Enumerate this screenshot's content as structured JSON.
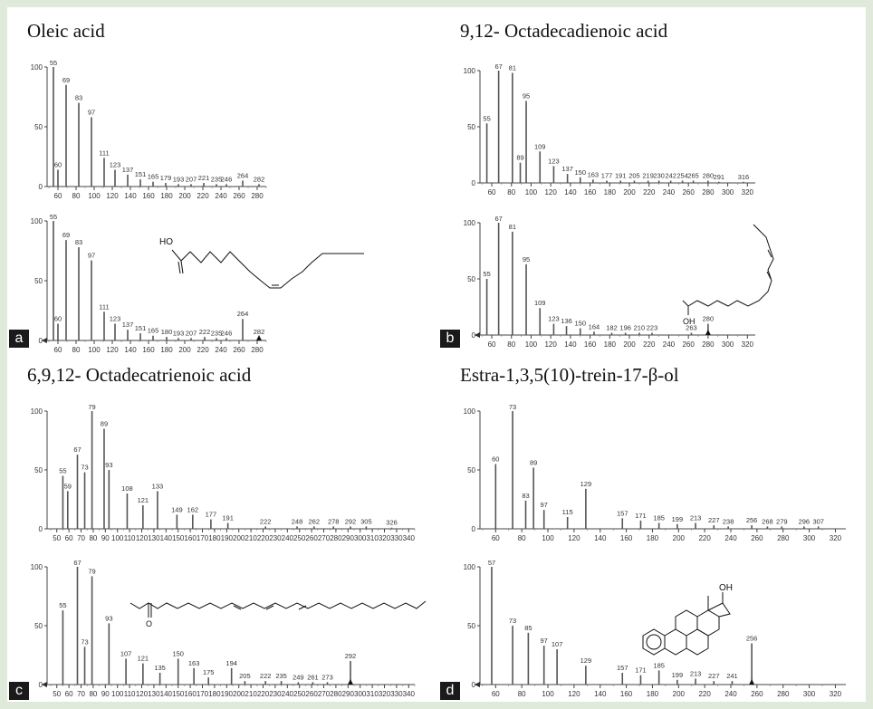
{
  "figure": {
    "panels": [
      {
        "title": "Oleic acid",
        "letter": "a"
      },
      {
        "title": "9,12- Octadecadienoic acid",
        "letter": "b"
      },
      {
        "title": "6,9,12- Octadecatrienoic acid",
        "letter": "c"
      },
      {
        "title": "Estra-1,3,5(10)-trein-17-β-ol",
        "letter": "d"
      }
    ],
    "structures": {
      "oleic_label": "HO",
      "linoleic_label": "OH",
      "gla_label": "O",
      "estradiol_label": "OH"
    }
  },
  "chart_data": [
    {
      "type": "bar",
      "panel": "a",
      "role": "sample",
      "xlim": [
        48,
        290
      ],
      "ylim": [
        0,
        100
      ],
      "yticks": [
        0,
        50,
        100
      ],
      "xticks": [
        60,
        80,
        100,
        120,
        140,
        160,
        180,
        200,
        220,
        240,
        260,
        280
      ],
      "peaks": [
        [
          55,
          100
        ],
        [
          60,
          14
        ],
        [
          69,
          85
        ],
        [
          83,
          70
        ],
        [
          97,
          58
        ],
        [
          111,
          24
        ],
        [
          123,
          14
        ],
        [
          137,
          10
        ],
        [
          151,
          6
        ],
        [
          165,
          4
        ],
        [
          179,
          3
        ],
        [
          193,
          2
        ],
        [
          207,
          2
        ],
        [
          221,
          3
        ],
        [
          235,
          2
        ],
        [
          246,
          2
        ],
        [
          264,
          5
        ],
        [
          282,
          2
        ]
      ],
      "labels": [
        55,
        60,
        69,
        83,
        97,
        111,
        123,
        137,
        151,
        165,
        179,
        193,
        207,
        221,
        235,
        246,
        264,
        282
      ]
    },
    {
      "type": "bar",
      "panel": "a",
      "role": "library",
      "xlim": [
        48,
        290
      ],
      "ylim": [
        0,
        100
      ],
      "yticks": [
        0,
        50,
        100
      ],
      "xticks": [
        60,
        80,
        100,
        120,
        140,
        160,
        180,
        200,
        220,
        240,
        260,
        280
      ],
      "peaks": [
        [
          55,
          100
        ],
        [
          60,
          14
        ],
        [
          69,
          84
        ],
        [
          83,
          78
        ],
        [
          97,
          67
        ],
        [
          111,
          24
        ],
        [
          123,
          14
        ],
        [
          137,
          9
        ],
        [
          151,
          6
        ],
        [
          165,
          4
        ],
        [
          180,
          3
        ],
        [
          193,
          2
        ],
        [
          207,
          2
        ],
        [
          222,
          3
        ],
        [
          235,
          2
        ],
        [
          246,
          2
        ],
        [
          264,
          18
        ],
        [
          282,
          3
        ]
      ],
      "labels": [
        55,
        60,
        69,
        83,
        97,
        111,
        123,
        137,
        151,
        165,
        180,
        193,
        207,
        222,
        235,
        246,
        264,
        282
      ]
    },
    {
      "type": "bar",
      "panel": "b",
      "role": "sample",
      "xlim": [
        48,
        328
      ],
      "ylim": [
        0,
        100
      ],
      "yticks": [
        0,
        50,
        100
      ],
      "xticks": [
        60,
        80,
        100,
        120,
        140,
        160,
        180,
        200,
        220,
        240,
        260,
        280,
        300,
        320
      ],
      "peaks": [
        [
          55,
          53
        ],
        [
          67,
          100
        ],
        [
          81,
          98
        ],
        [
          89,
          18
        ],
        [
          95,
          73
        ],
        [
          109,
          28
        ],
        [
          123,
          15
        ],
        [
          137,
          8
        ],
        [
          150,
          5
        ],
        [
          163,
          3
        ],
        [
          177,
          2
        ],
        [
          191,
          2
        ],
        [
          205,
          2
        ],
        [
          219,
          2
        ],
        [
          230,
          2
        ],
        [
          242,
          2
        ],
        [
          254,
          2
        ],
        [
          265,
          2
        ],
        [
          280,
          2
        ],
        [
          291,
          1
        ],
        [
          316,
          1
        ]
      ],
      "labels": [
        55,
        67,
        81,
        89,
        95,
        109,
        123,
        137,
        150,
        163,
        177,
        191,
        205,
        219,
        230,
        242,
        254,
        265,
        280,
        291,
        316
      ]
    },
    {
      "type": "bar",
      "panel": "b",
      "role": "library",
      "xlim": [
        48,
        328
      ],
      "ylim": [
        0,
        100
      ],
      "yticks": [
        0,
        50,
        100
      ],
      "xticks": [
        60,
        80,
        100,
        120,
        140,
        160,
        180,
        200,
        220,
        240,
        260,
        280,
        300,
        320
      ],
      "peaks": [
        [
          55,
          50
        ],
        [
          67,
          100
        ],
        [
          81,
          92
        ],
        [
          95,
          63
        ],
        [
          109,
          24
        ],
        [
          123,
          10
        ],
        [
          136,
          8
        ],
        [
          150,
          6
        ],
        [
          164,
          3
        ],
        [
          182,
          2
        ],
        [
          196,
          2
        ],
        [
          210,
          2
        ],
        [
          223,
          2
        ],
        [
          263,
          2
        ],
        [
          280,
          10
        ]
      ],
      "labels": [
        55,
        67,
        81,
        95,
        109,
        123,
        136,
        150,
        164,
        182,
        196,
        210,
        223,
        263,
        280
      ]
    },
    {
      "type": "bar",
      "panel": "c",
      "role": "sample",
      "xlim": [
        42,
        345
      ],
      "ylim": [
        0,
        100
      ],
      "yticks": [
        0,
        50,
        100
      ],
      "xticks": [
        50,
        60,
        70,
        80,
        90,
        100,
        110,
        120,
        130,
        140,
        150,
        160,
        170,
        180,
        190,
        200,
        210,
        220,
        230,
        240,
        250,
        260,
        270,
        280,
        290,
        300,
        310,
        320,
        330,
        340
      ],
      "peaks": [
        [
          55,
          45
        ],
        [
          59,
          32
        ],
        [
          67,
          63
        ],
        [
          73,
          48
        ],
        [
          79,
          100
        ],
        [
          89,
          85
        ],
        [
          93,
          50
        ],
        [
          108,
          30
        ],
        [
          121,
          20
        ],
        [
          133,
          32
        ],
        [
          149,
          12
        ],
        [
          162,
          12
        ],
        [
          177,
          8
        ],
        [
          191,
          5
        ],
        [
          222,
          2
        ],
        [
          248,
          2
        ],
        [
          262,
          2
        ],
        [
          278,
          2
        ],
        [
          292,
          2
        ],
        [
          305,
          2
        ],
        [
          326,
          1
        ]
      ],
      "labels": [
        55,
        59,
        67,
        73,
        79,
        89,
        93,
        108,
        121,
        133,
        149,
        162,
        177,
        191,
        222,
        248,
        262,
        278,
        292,
        305,
        326
      ]
    },
    {
      "type": "bar",
      "panel": "c",
      "role": "library",
      "xlim": [
        42,
        345
      ],
      "ylim": [
        0,
        100
      ],
      "yticks": [
        0,
        50,
        100
      ],
      "xticks": [
        50,
        60,
        70,
        80,
        90,
        100,
        110,
        120,
        130,
        140,
        150,
        160,
        170,
        180,
        190,
        200,
        210,
        220,
        230,
        240,
        250,
        260,
        270,
        280,
        290,
        300,
        310,
        320,
        330,
        340
      ],
      "peaks": [
        [
          55,
          63
        ],
        [
          67,
          100
        ],
        [
          73,
          32
        ],
        [
          79,
          92
        ],
        [
          93,
          52
        ],
        [
          107,
          22
        ],
        [
          121,
          18
        ],
        [
          135,
          10
        ],
        [
          150,
          22
        ],
        [
          163,
          14
        ],
        [
          175,
          6
        ],
        [
          194,
          14
        ],
        [
          205,
          3
        ],
        [
          222,
          3
        ],
        [
          235,
          3
        ],
        [
          249,
          2
        ],
        [
          261,
          2
        ],
        [
          273,
          2
        ],
        [
          292,
          20
        ]
      ],
      "labels": [
        55,
        67,
        73,
        79,
        93,
        107,
        121,
        135,
        150,
        163,
        175,
        194,
        205,
        222,
        235,
        249,
        261,
        273,
        292
      ]
    },
    {
      "type": "bar",
      "panel": "d",
      "role": "sample",
      "xlim": [
        48,
        328
      ],
      "ylim": [
        0,
        100
      ],
      "yticks": [
        0,
        50,
        100
      ],
      "xticks": [
        60,
        80,
        100,
        120,
        140,
        160,
        180,
        200,
        220,
        240,
        260,
        280,
        300,
        320
      ],
      "peaks": [
        [
          60,
          55
        ],
        [
          73,
          100
        ],
        [
          83,
          24
        ],
        [
          89,
          52
        ],
        [
          97,
          16
        ],
        [
          115,
          10
        ],
        [
          129,
          34
        ],
        [
          157,
          9
        ],
        [
          171,
          7
        ],
        [
          185,
          5
        ],
        [
          199,
          4
        ],
        [
          213,
          5
        ],
        [
          227,
          3
        ],
        [
          238,
          2
        ],
        [
          256,
          3
        ],
        [
          268,
          2
        ],
        [
          279,
          2
        ],
        [
          296,
          2
        ],
        [
          307,
          2
        ]
      ],
      "labels": [
        60,
        73,
        83,
        89,
        97,
        115,
        129,
        157,
        171,
        185,
        199,
        213,
        227,
        238,
        256,
        268,
        279,
        296,
        307
      ]
    },
    {
      "type": "bar",
      "panel": "d",
      "role": "library",
      "xlim": [
        48,
        328
      ],
      "ylim": [
        0,
        100
      ],
      "yticks": [
        0,
        50,
        100
      ],
      "xticks": [
        60,
        80,
        100,
        120,
        140,
        160,
        180,
        200,
        220,
        240,
        260,
        280,
        300,
        320
      ],
      "peaks": [
        [
          57,
          100
        ],
        [
          73,
          50
        ],
        [
          85,
          44
        ],
        [
          97,
          33
        ],
        [
          107,
          30
        ],
        [
          129,
          16
        ],
        [
          157,
          10
        ],
        [
          171,
          8
        ],
        [
          185,
          12
        ],
        [
          199,
          4
        ],
        [
          213,
          5
        ],
        [
          227,
          3
        ],
        [
          241,
          3
        ],
        [
          256,
          35
        ]
      ],
      "labels": [
        57,
        73,
        85,
        97,
        107,
        129,
        157,
        171,
        185,
        199,
        213,
        227,
        241,
        256
      ]
    }
  ]
}
